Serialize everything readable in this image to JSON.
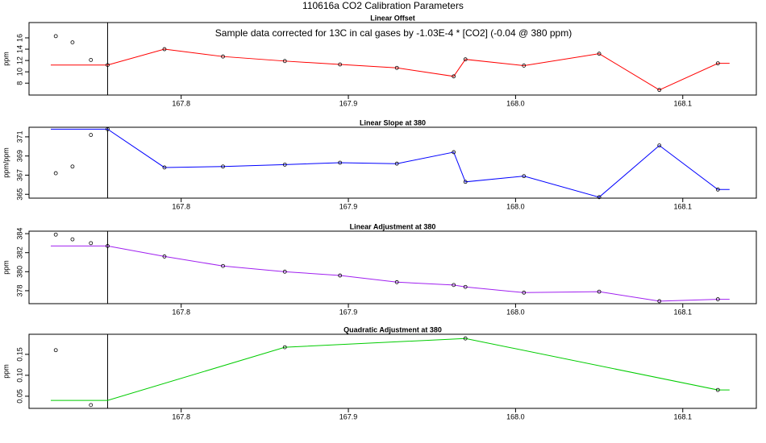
{
  "title": "110616a   CO2 Calibration Parameters",
  "chart_data": [
    {
      "type": "line",
      "title": "Linear Offset",
      "ylabel": "ppm",
      "color": "#ff0000",
      "annotation": "Sample data corrected for 13C in cal gases by -1.03E-4 * [CO2] (-0.04 @ 380 ppm)",
      "xlim": [
        167.709,
        168.144
      ],
      "xticks": [
        167.8,
        167.9,
        {
          "value": 168,
          "label": "168.0"
        },
        168.1
      ],
      "ylim": [
        5.9,
        18.7
      ],
      "yticks": [
        8,
        10,
        12,
        14,
        16
      ],
      "vline": 167.756,
      "x": [
        167.722,
        167.756,
        167.79,
        167.825,
        167.862,
        167.895,
        167.929,
        167.963,
        167.97,
        168.005,
        168.05,
        168.086,
        168.121,
        168.128
      ],
      "values": [
        11.2,
        11.2,
        14.0,
        12.7,
        11.9,
        11.3,
        10.7,
        9.2,
        12.2,
        11.1,
        13.2,
        6.8,
        11.5,
        11.5
      ],
      "points": {
        "x": [
          167.725,
          167.735,
          167.746,
          167.756,
          167.79,
          167.825,
          167.862,
          167.895,
          167.929,
          167.963,
          167.97,
          168.005,
          168.05,
          168.086,
          168.121
        ],
        "values": [
          16.3,
          15.2,
          12.1,
          11.2,
          14.0,
          12.7,
          11.9,
          11.3,
          10.7,
          9.2,
          12.2,
          11.1,
          13.2,
          6.8,
          11.5
        ]
      }
    },
    {
      "type": "line",
      "title": "Linear Slope at 380",
      "ylabel": "ppm/ppm",
      "color": "#0000ff",
      "xlim": [
        167.709,
        168.144
      ],
      "xticks": [
        167.8,
        167.9,
        {
          "value": 168,
          "label": "168.0"
        },
        168.1
      ],
      "ylim": [
        364.6,
        372.0
      ],
      "yticks": [
        365,
        367,
        369,
        371
      ],
      "vline": 167.756,
      "x": [
        167.722,
        167.756,
        167.79,
        167.825,
        167.862,
        167.895,
        167.929,
        167.963,
        167.97,
        168.005,
        168.05,
        168.086,
        168.121,
        168.128
      ],
      "values": [
        371.8,
        371.8,
        367.8,
        367.9,
        368.1,
        368.3,
        368.2,
        369.4,
        366.3,
        366.9,
        364.7,
        370.1,
        365.5,
        365.5
      ],
      "points": {
        "x": [
          167.725,
          167.735,
          167.746,
          167.756,
          167.79,
          167.825,
          167.862,
          167.895,
          167.929,
          167.963,
          167.97,
          168.005,
          168.05,
          168.086,
          168.121
        ],
        "values": [
          367.2,
          367.9,
          371.2,
          371.8,
          367.8,
          367.9,
          368.1,
          368.3,
          368.2,
          369.4,
          366.3,
          366.9,
          364.7,
          370.1,
          365.5
        ]
      }
    },
    {
      "type": "line",
      "title": "Linear Adjustment at 380",
      "ylabel": "ppm",
      "color": "#a020f0",
      "xlim": [
        167.709,
        168.144
      ],
      "xticks": [
        167.8,
        167.9,
        {
          "value": 168,
          "label": "168.0"
        },
        168.1
      ],
      "ylim": [
        376.64,
        384.26
      ],
      "yticks": [
        378,
        380,
        382,
        384
      ],
      "vline": 167.756,
      "x": [
        167.722,
        167.756,
        167.79,
        167.825,
        167.862,
        167.895,
        167.929,
        167.963,
        167.97,
        168.005,
        168.05,
        168.086,
        168.121,
        168.128
      ],
      "values": [
        382.7,
        382.7,
        381.6,
        380.6,
        380.0,
        379.6,
        378.9,
        378.6,
        378.4,
        377.8,
        377.9,
        376.9,
        377.1,
        377.1
      ],
      "points": {
        "x": [
          167.725,
          167.735,
          167.746,
          167.756,
          167.79,
          167.825,
          167.862,
          167.895,
          167.929,
          167.963,
          167.97,
          168.005,
          168.05,
          168.086,
          168.121
        ],
        "values": [
          383.9,
          383.4,
          383.0,
          382.7,
          381.6,
          380.6,
          380.0,
          379.6,
          378.9,
          378.6,
          378.4,
          377.8,
          377.9,
          376.9,
          377.1
        ]
      }
    },
    {
      "type": "line",
      "title": "Quadratic Adjustment at 380",
      "ylabel": "ppm",
      "color": "#00cc00",
      "xlim": [
        167.709,
        168.144
      ],
      "xticks": [
        167.8,
        167.9,
        {
          "value": 168,
          "label": "168.0"
        },
        168.1
      ],
      "ylim": [
        0.021,
        0.198
      ],
      "yticks": [
        0.05,
        {
          "value": 0.1,
          "label": "0.10"
        },
        0.15
      ],
      "vline": 167.756,
      "x": [
        167.722,
        167.756,
        167.862,
        167.97,
        168.121,
        168.128
      ],
      "values": [
        0.04,
        0.04,
        0.167,
        0.188,
        0.065,
        0.065
      ],
      "points": {
        "x": [
          167.725,
          167.746,
          167.862,
          167.97,
          168.121
        ],
        "values": [
          0.16,
          0.029,
          0.167,
          0.188,
          0.065
        ]
      }
    }
  ]
}
